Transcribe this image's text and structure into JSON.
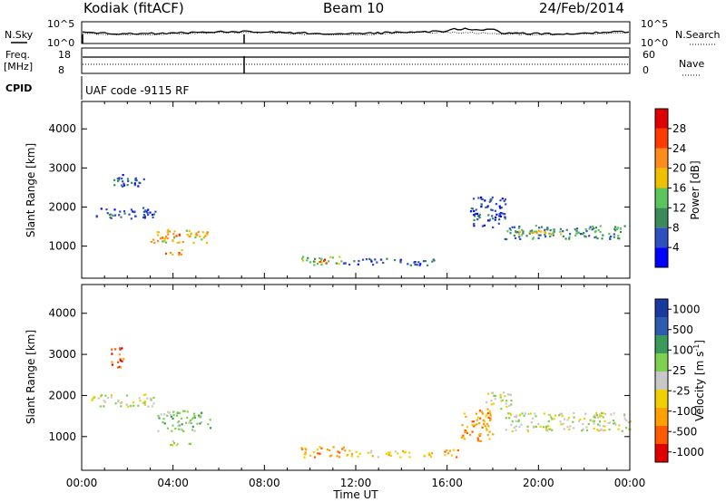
{
  "header": {
    "station": "Kodiak (fitACF)",
    "beam": "Beam 10",
    "date": "24/Feb/2014"
  },
  "top_panel": {
    "left_label": "N.Sky",
    "right_label": "N.Search",
    "left_ticks": [
      "10^5",
      "10^0"
    ],
    "right_ticks": [
      "10^5",
      "10^0"
    ]
  },
  "freq_panel": {
    "left_label_top": "Freq.",
    "left_label_bottom": "[MHz]",
    "right_label": "Nave",
    "left_ticks": [
      "18",
      "8"
    ],
    "right_ticks": [
      "60",
      "0"
    ]
  },
  "cpid": {
    "label": "CPID",
    "text": "UAF code -9115 RF"
  },
  "colors": {
    "power": [
      "#0000ff",
      "#2e4fbf",
      "#3a8a5a",
      "#5cc45c",
      "#f0c000",
      "#ff8c1a",
      "#ff3c00",
      "#e00000"
    ],
    "velocity": [
      "#e00000",
      "#ff5a00",
      "#ffa000",
      "#f0d000",
      "#c8c8c8",
      "#80d050",
      "#3a9a5a",
      "#2e5bb0",
      "#1a3aa0"
    ]
  },
  "chart_data": [
    {
      "type": "heatmap",
      "name": "power",
      "ylabel": "Slant Range [km]",
      "xlim": [
        "00:00",
        "24:00"
      ],
      "ylim": [
        180,
        4700
      ],
      "yticks": [
        1000,
        2000,
        3000,
        4000
      ],
      "colorbar": {
        "label": "Power [dB]",
        "ticks": [
          4,
          8,
          12,
          16,
          20,
          24,
          28
        ],
        "range": [
          0,
          32
        ]
      },
      "regions": [
        {
          "t0": 0.6,
          "t1": 3.2,
          "r0": 1700,
          "r1": 2000,
          "level": 1
        },
        {
          "t0": 1.2,
          "t1": 2.8,
          "r0": 2550,
          "r1": 2850,
          "level": 1
        },
        {
          "t0": 3.0,
          "t1": 5.5,
          "r0": 1100,
          "r1": 1450,
          "level": 4
        },
        {
          "t0": 3.4,
          "t1": 4.6,
          "r0": 1200,
          "r1": 1350,
          "level": 6
        },
        {
          "t0": 3.6,
          "t1": 4.4,
          "r0": 800,
          "r1": 950,
          "level": 5
        },
        {
          "t0": 9.6,
          "t1": 11.4,
          "r0": 520,
          "r1": 760,
          "level": 3
        },
        {
          "t0": 10.2,
          "t1": 10.7,
          "r0": 570,
          "r1": 700,
          "level": 7
        },
        {
          "t0": 11.4,
          "t1": 15.4,
          "r0": 530,
          "r1": 700,
          "level": 1
        },
        {
          "t0": 18.5,
          "t1": 23.9,
          "r0": 1200,
          "r1": 1550,
          "level": 2
        },
        {
          "t0": 19.0,
          "t1": 21.0,
          "r0": 1300,
          "r1": 1450,
          "level": 4
        },
        {
          "t0": 17.0,
          "t1": 18.6,
          "r0": 1500,
          "r1": 2300,
          "level": 1
        }
      ]
    },
    {
      "type": "heatmap",
      "name": "velocity",
      "xlabel": "Time UT",
      "ylabel": "Slant Range [km]",
      "xlim": [
        "00:00",
        "24:00"
      ],
      "ylim": [
        180,
        4700
      ],
      "xticks": [
        "00:00",
        "04:00",
        "08:00",
        "12:00",
        "16:00",
        "20:00",
        "00:00"
      ],
      "yticks": [
        1000,
        2000,
        3000,
        4000
      ],
      "colorbar": {
        "label": "Velocity [m s",
        "label_sup": "-1",
        "label_end": "]",
        "ticks": [
          -1000,
          -500,
          -100,
          -25,
          25,
          100,
          500,
          1000
        ],
        "tick_labels": [
          "-1000",
          "-500",
          "-100",
          "-25",
          "25",
          "100",
          "500",
          "1000"
        ]
      },
      "regions": [
        {
          "t0": 0.4,
          "t1": 3.2,
          "r0": 1750,
          "r1": 2050,
          "level": 4
        },
        {
          "t0": 3.3,
          "t1": 5.6,
          "r0": 1150,
          "r1": 1650,
          "level": 5
        },
        {
          "t0": 3.8,
          "t1": 4.8,
          "r0": 800,
          "r1": 950,
          "level": 4
        },
        {
          "t0": 1.2,
          "t1": 1.8,
          "r0": 2700,
          "r1": 3200,
          "level": 1
        },
        {
          "t0": 9.5,
          "t1": 11.5,
          "r0": 520,
          "r1": 780,
          "level": 2
        },
        {
          "t0": 11.5,
          "t1": 15.4,
          "r0": 520,
          "r1": 680,
          "level": 3
        },
        {
          "t0": 15.6,
          "t1": 16.5,
          "r0": 520,
          "r1": 700,
          "level": 2
        },
        {
          "t0": 16.6,
          "t1": 18.0,
          "r0": 900,
          "r1": 1700,
          "level": 2
        },
        {
          "t0": 18.5,
          "t1": 24.0,
          "r0": 1150,
          "r1": 1600,
          "level": 4
        },
        {
          "t0": 17.6,
          "t1": 18.8,
          "r0": 1700,
          "r1": 2100,
          "level": 4
        }
      ]
    }
  ]
}
